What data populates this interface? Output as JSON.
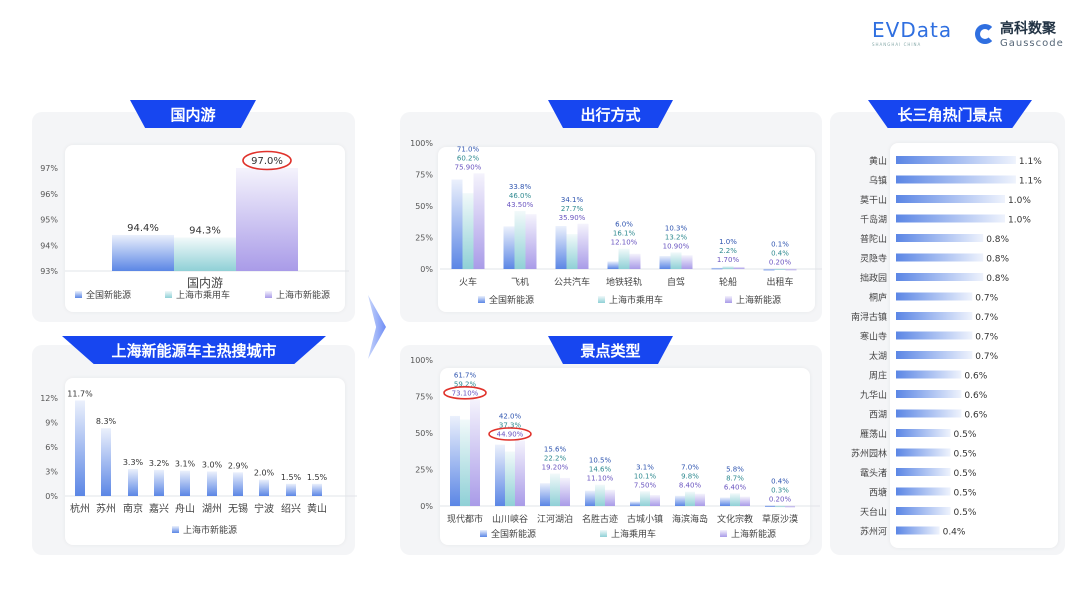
{
  "logos": {
    "evdata": "EVData",
    "evdata_sub": "SHANGHAI CHINA",
    "gauss_cn": "高科数聚",
    "gauss_en": "Gausscode"
  },
  "colors": {
    "banner": "#1746f0",
    "series": [
      "#5b86e5",
      "#8fd0d6",
      "#a99be8"
    ],
    "highlight": "#e0322b"
  },
  "chart_data": [
    {
      "id": "domestic",
      "type": "bar",
      "title": "国内游",
      "categories": [
        "国内游"
      ],
      "ylim": [
        93,
        97
      ],
      "yticks": [
        93,
        94,
        95,
        96,
        97
      ],
      "tick_suffix": "%",
      "series": [
        {
          "name": "全国新能源",
          "values": [
            94.4
          ],
          "decimals": 1
        },
        {
          "name": "上海市乘用车",
          "values": [
            94.3
          ],
          "decimals": 1
        },
        {
          "name": "上海市新能源",
          "values": [
            97.0
          ],
          "decimals": 1
        }
      ],
      "highlights": [
        [
          2,
          0
        ]
      ],
      "legend": "bottom"
    },
    {
      "id": "cities",
      "type": "bar",
      "title": "上海新能源车主热搜城市",
      "categories": [
        "杭州",
        "苏州",
        "南京",
        "嘉兴",
        "舟山",
        "湖州",
        "无锡",
        "宁波",
        "绍兴",
        "黄山"
      ],
      "ylim": [
        0,
        12
      ],
      "yticks": [
        0,
        3,
        6,
        9,
        12
      ],
      "tick_suffix": "%",
      "series": [
        {
          "name": "上海市新能源",
          "values": [
            11.7,
            8.3,
            3.3,
            3.2,
            3.1,
            3.0,
            2.9,
            2.0,
            1.5,
            1.5
          ],
          "decimals": 1
        }
      ],
      "highlights": [],
      "legend": "bottom"
    },
    {
      "id": "transport",
      "type": "bar",
      "title": "出行方式",
      "categories": [
        "火车",
        "飞机",
        "公共汽车",
        "地铁轻轨",
        "自驾",
        "轮船",
        "出租车"
      ],
      "ylim": [
        0,
        100
      ],
      "yticks": [
        0,
        25,
        50,
        75,
        100
      ],
      "tick_suffix": "%",
      "series": [
        {
          "name": "全国新能源",
          "values": [
            71.0,
            33.8,
            34.1,
            6.0,
            10.3,
            1.0,
            0.1
          ],
          "decimals": 1
        },
        {
          "name": "上海市乘用车",
          "values": [
            60.2,
            46.0,
            27.7,
            16.1,
            13.2,
            2.2,
            0.4
          ],
          "decimals": 1
        },
        {
          "name": "上海新能源",
          "values": [
            75.9,
            43.5,
            35.9,
            12.1,
            10.9,
            1.7,
            0.2
          ],
          "decimals": 2
        }
      ],
      "highlights": [],
      "legend": "bottom"
    },
    {
      "id": "scenic",
      "type": "bar",
      "title": "景点类型",
      "categories": [
        "现代都市",
        "山川峡谷",
        "江河湖泊",
        "名胜古迹",
        "古城小镇",
        "海滨海岛",
        "文化宗教",
        "草原沙漠"
      ],
      "ylim": [
        0,
        100
      ],
      "yticks": [
        0,
        25,
        50,
        75,
        100
      ],
      "tick_suffix": "%",
      "series": [
        {
          "name": "全国新能源",
          "values": [
            61.7,
            42.0,
            15.6,
            10.5,
            3.1,
            7.0,
            5.8,
            0.4
          ],
          "decimals": 1
        },
        {
          "name": "上海乘用车",
          "values": [
            59.2,
            37.3,
            22.2,
            14.6,
            10.1,
            9.8,
            8.7,
            0.3
          ],
          "decimals": 1
        },
        {
          "name": "上海新能源",
          "values": [
            73.1,
            44.9,
            19.2,
            11.1,
            7.5,
            8.4,
            6.4,
            0.2
          ],
          "decimals": 2
        }
      ],
      "highlights": [
        [
          2,
          0
        ],
        [
          2,
          1
        ]
      ],
      "legend": "bottom"
    },
    {
      "id": "hotspots",
      "type": "bar",
      "orientation": "horizontal",
      "title": "长三角热门景点",
      "categories": [
        "黄山",
        "乌镇",
        "莫干山",
        "千岛湖",
        "普陀山",
        "灵隐寺",
        "拙政园",
        "桐庐",
        "南浔古镇",
        "寒山寺",
        "太湖",
        "周庄",
        "九华山",
        "西湖",
        "雁荡山",
        "苏州园林",
        "鼋头渚",
        "西塘",
        "天台山",
        "苏州河"
      ],
      "series": [
        {
          "values": [
            1.1,
            1.1,
            1.0,
            1.0,
            0.8,
            0.8,
            0.8,
            0.7,
            0.7,
            0.7,
            0.7,
            0.6,
            0.6,
            0.6,
            0.5,
            0.5,
            0.5,
            0.5,
            0.5,
            0.4
          ],
          "decimals": 1
        }
      ]
    }
  ]
}
